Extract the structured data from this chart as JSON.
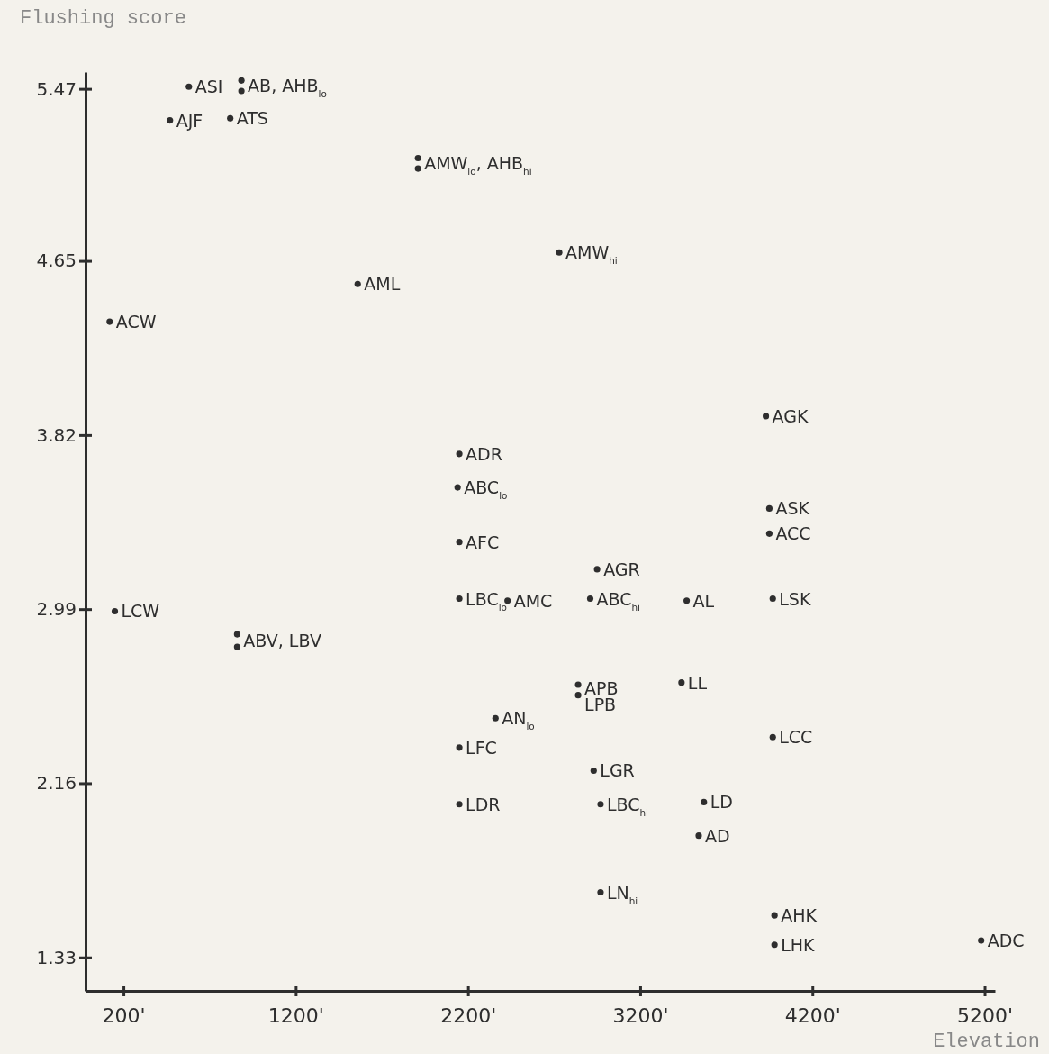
{
  "chart_data": {
    "type": "scatter",
    "ylabel": "Flushing score",
    "xlabel": "Elevation",
    "marker": "circle",
    "grid": false,
    "xlim": [
      -20,
      5260
    ],
    "ylim": [
      1.17,
      5.55
    ],
    "xticks": [
      {
        "value": 200,
        "label": "200'"
      },
      {
        "value": 1200,
        "label": "1200'"
      },
      {
        "value": 2200,
        "label": "2200'"
      },
      {
        "value": 3200,
        "label": "3200'"
      },
      {
        "value": 4200,
        "label": "4200'"
      },
      {
        "value": 5200,
        "label": "5200'"
      }
    ],
    "yticks": [
      1.33,
      2.16,
      2.99,
      3.82,
      4.65,
      5.47
    ],
    "series": [
      {
        "color": "#2e2e2e",
        "x": [
          580,
          885,
          885,
          470,
          820,
          1910,
          1910,
          2730,
          1560,
          120,
          3930,
          2150,
          2140,
          3950,
          3950,
          2150,
          2950,
          2150,
          2430,
          2910,
          3470,
          3970,
          150,
          860,
          860,
          2840,
          2840,
          3440,
          2360,
          3970,
          2150,
          2930,
          2150,
          2970,
          3570,
          3540,
          2970,
          3980,
          3980,
          5180
        ],
        "values": [
          5.48,
          5.51,
          5.46,
          5.32,
          5.33,
          5.14,
          5.09,
          4.69,
          4.54,
          4.36,
          3.91,
          3.73,
          3.57,
          3.47,
          3.35,
          3.31,
          3.18,
          3.04,
          3.03,
          3.04,
          3.03,
          3.04,
          2.98,
          2.87,
          2.81,
          2.63,
          2.58,
          2.64,
          2.47,
          2.38,
          2.33,
          2.22,
          2.06,
          2.06,
          2.07,
          1.91,
          1.64,
          1.53,
          1.39,
          1.41
        ]
      }
    ],
    "annotations": [
      {
        "text": "ASI",
        "x": 580,
        "y": 5.48
      },
      {
        "text": "AB, AHB$_{lo}$",
        "x": 885,
        "y": 5.485
      },
      {
        "text": "AJF",
        "x": 470,
        "y": 5.32
      },
      {
        "text": "ATS",
        "x": 820,
        "y": 5.33
      },
      {
        "text": "AMW$_{lo}$, AHB$_{hi}$",
        "x": 1910,
        "y": 5.115
      },
      {
        "text": "AMW$_{hi}$",
        "x": 2730,
        "y": 4.69
      },
      {
        "text": "AML",
        "x": 1560,
        "y": 4.54
      },
      {
        "text": "ACW",
        "x": 120,
        "y": 4.36
      },
      {
        "text": "AGK",
        "x": 3930,
        "y": 3.91
      },
      {
        "text": "ADR",
        "x": 2150,
        "y": 3.73
      },
      {
        "text": "ABC$_{lo}$",
        "x": 2140,
        "y": 3.57
      },
      {
        "text": "ASK",
        "x": 3950,
        "y": 3.47
      },
      {
        "text": "ACC",
        "x": 3950,
        "y": 3.35
      },
      {
        "text": "AFC",
        "x": 2150,
        "y": 3.31
      },
      {
        "text": "AGR",
        "x": 2950,
        "y": 3.18
      },
      {
        "text": "LBC$_{lo}$",
        "x": 2150,
        "y": 3.04
      },
      {
        "text": "AMC",
        "x": 2430,
        "y": 3.03
      },
      {
        "text": "ABC$_{hi}$",
        "x": 2910,
        "y": 3.04
      },
      {
        "text": "AL",
        "x": 3470,
        "y": 3.03
      },
      {
        "text": "LSK",
        "x": 3970,
        "y": 3.04
      },
      {
        "text": "LCW",
        "x": 150,
        "y": 2.98
      },
      {
        "text": "ABV, LBV",
        "x": 860,
        "y": 2.84
      },
      {
        "text": "APB",
        "x": 2840,
        "y": 2.63
      },
      {
        "text": "LPB",
        "x": 2840,
        "y": 2.58
      },
      {
        "text": "LL",
        "x": 3440,
        "y": 2.64
      },
      {
        "text": "AN$_{lo}$",
        "x": 2360,
        "y": 2.47
      },
      {
        "text": "LCC",
        "x": 3970,
        "y": 2.38
      },
      {
        "text": "LFC",
        "x": 2150,
        "y": 2.33
      },
      {
        "text": "LGR",
        "x": 2930,
        "y": 2.22
      },
      {
        "text": "LDR",
        "x": 2150,
        "y": 2.06
      },
      {
        "text": "LBC$_{hi}$",
        "x": 2970,
        "y": 2.06
      },
      {
        "text": "LD",
        "x": 3570,
        "y": 2.07
      },
      {
        "text": "AD",
        "x": 3540,
        "y": 1.91
      },
      {
        "text": "LN$_{hi}$",
        "x": 2970,
        "y": 1.64
      },
      {
        "text": "AHK",
        "x": 3980,
        "y": 1.53
      },
      {
        "text": "LHK",
        "x": 3980,
        "y": 1.39
      },
      {
        "text": "ADC",
        "x": 5180,
        "y": 1.41
      }
    ]
  }
}
